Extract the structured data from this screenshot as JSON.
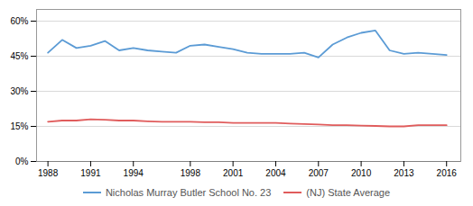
{
  "chart_data": {
    "type": "line",
    "x": [
      1988,
      1989,
      1990,
      1991,
      1992,
      1993,
      1994,
      1995,
      1996,
      1997,
      1998,
      1999,
      2000,
      2001,
      2002,
      2003,
      2004,
      2005,
      2006,
      2007,
      2008,
      2009,
      2010,
      2011,
      2012,
      2013,
      2014,
      2015,
      2016
    ],
    "series": [
      {
        "name": "Nicholas Murray Butler School No. 23",
        "color": "#5b9bd5",
        "values": [
          46.5,
          52.0,
          48.5,
          49.5,
          51.5,
          47.5,
          48.5,
          47.5,
          47.0,
          46.5,
          49.5,
          50.0,
          49.0,
          48.0,
          46.5,
          46.0,
          46.0,
          46.0,
          46.5,
          44.5,
          50.0,
          53.0,
          55.0,
          56.0,
          47.5,
          46.0,
          46.5,
          46.0,
          45.5
        ]
      },
      {
        "name": "(NJ) State Average",
        "color": "#e05c5c",
        "values": [
          17.0,
          17.5,
          17.5,
          18.0,
          17.8,
          17.5,
          17.5,
          17.2,
          17.0,
          17.0,
          17.0,
          16.8,
          16.8,
          16.5,
          16.5,
          16.5,
          16.5,
          16.2,
          16.0,
          15.8,
          15.5,
          15.5,
          15.3,
          15.2,
          15.0,
          15.0,
          15.5,
          15.5,
          15.5
        ]
      }
    ],
    "xlim": [
      1987.2,
      2017.0
    ],
    "xticks": [
      1988,
      1991,
      1994,
      1998,
      2001,
      2004,
      2007,
      2010,
      2013,
      2016
    ],
    "ylim": [
      0,
      65
    ],
    "yticks": [
      {
        "value": 0,
        "label": "0%"
      },
      {
        "value": 15,
        "label": "15%"
      },
      {
        "value": 30,
        "label": "30%"
      },
      {
        "value": 45,
        "label": "45%"
      },
      {
        "value": 60,
        "label": "60%"
      }
    ],
    "grid": true,
    "legend": "bottom"
  }
}
